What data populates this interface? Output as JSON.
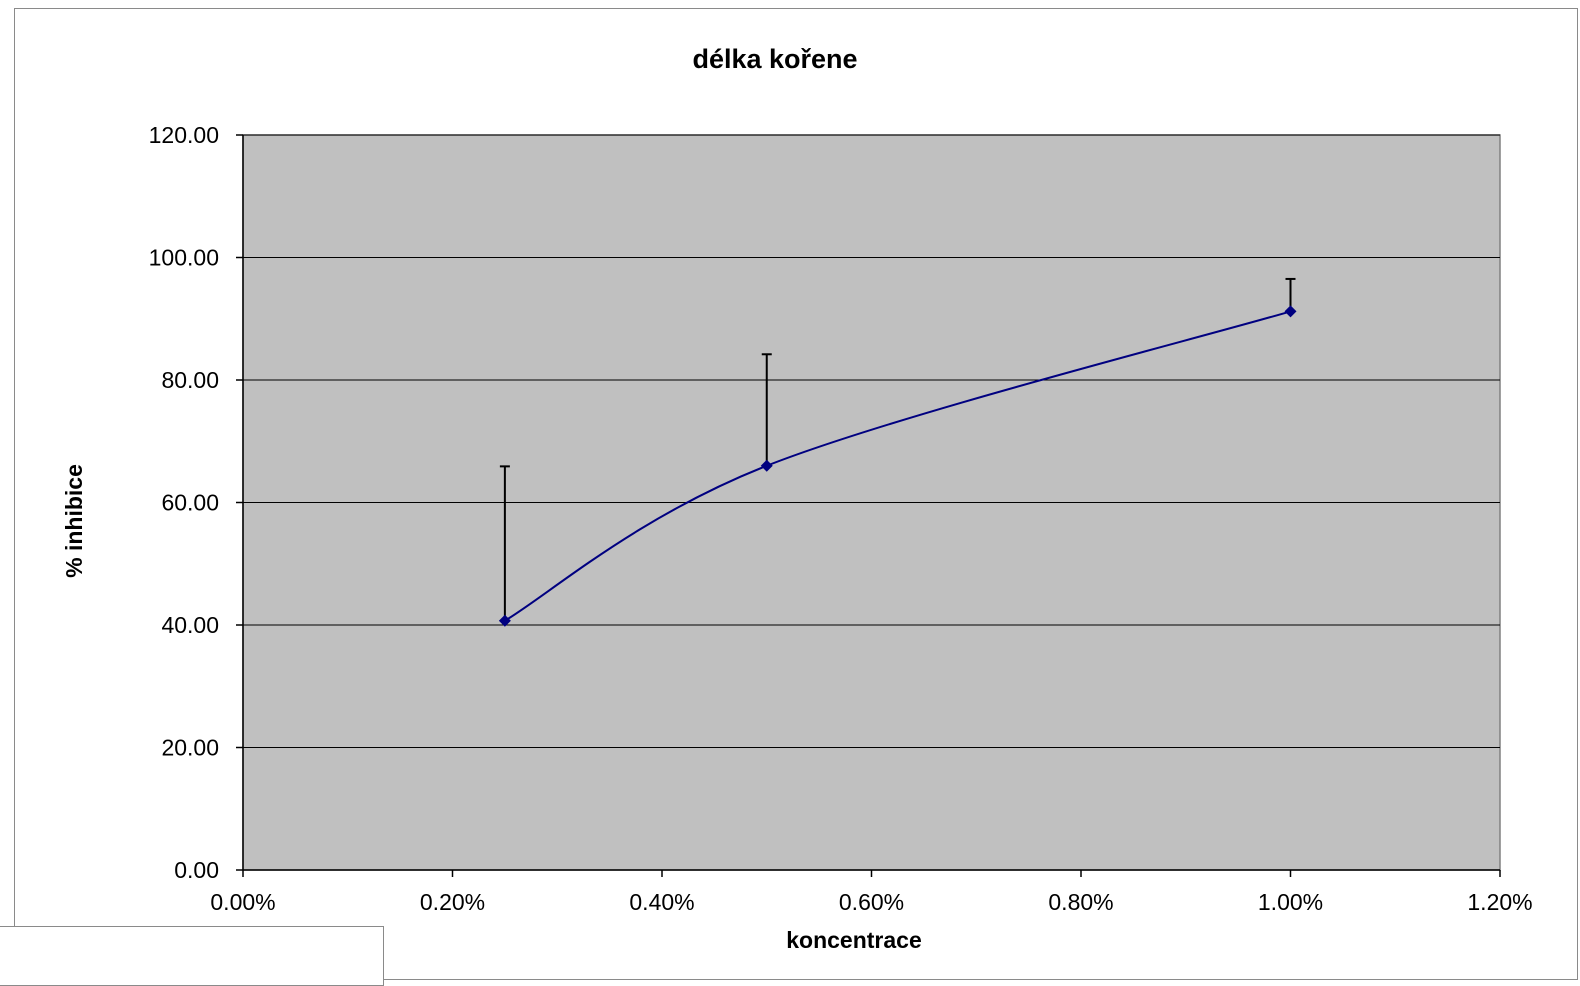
{
  "chart_data": {
    "type": "line",
    "title": "délka kořene",
    "xlabel": "koncentrace",
    "ylabel": "% inhibice",
    "xlim": [
      0,
      1.2
    ],
    "ylim": [
      0,
      120
    ],
    "x_ticks": [
      "0.00%",
      "0.20%",
      "0.40%",
      "0.60%",
      "0.80%",
      "1.00%",
      "1.20%"
    ],
    "y_ticks": [
      "0.00",
      "20.00",
      "40.00",
      "60.00",
      "80.00",
      "100.00",
      "120.00"
    ],
    "x_tick_values": [
      0,
      0.2,
      0.4,
      0.6,
      0.8,
      1.0,
      1.2
    ],
    "y_tick_values": [
      0,
      20,
      40,
      60,
      80,
      100,
      120
    ],
    "grid": "horizontal",
    "smooth": true,
    "plot_background": "#c0c0c0",
    "series": [
      {
        "color": "#000080",
        "marker": "diamond",
        "x": [
          0.25,
          0.5,
          1.0
        ],
        "y": [
          40.7,
          66.0,
          91.2
        ],
        "error_plus": [
          25.2,
          18.2,
          5.3
        ]
      }
    ]
  }
}
